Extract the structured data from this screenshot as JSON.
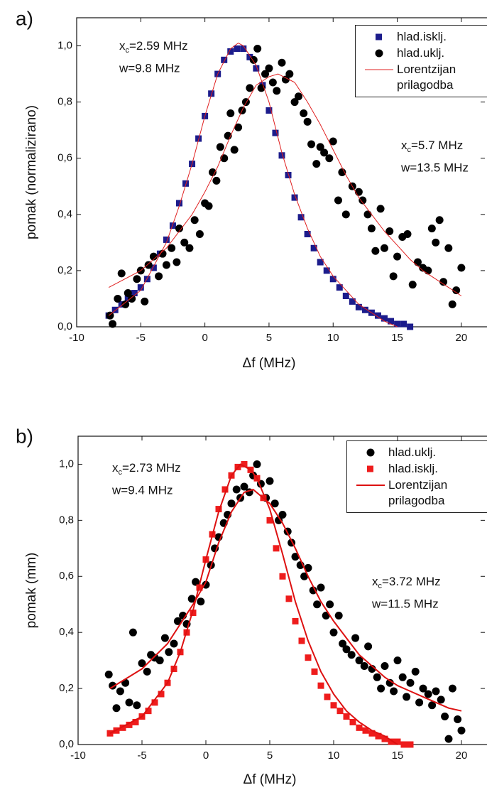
{
  "chart_data": [
    {
      "type": "scatter",
      "label": "a)",
      "x_label": "Δf (MHz)",
      "y_label": "pomak (normalizirano)",
      "xlim": [
        -10,
        22
      ],
      "ylim": [
        0,
        1.1
      ],
      "xticks": [
        -10,
        -5,
        0,
        5,
        10,
        15,
        20
      ],
      "yticks": [
        {
          "value": 0,
          "label": "0,0"
        },
        {
          "value": 0.2,
          "label": "0,2"
        },
        {
          "value": 0.4,
          "label": "0,4"
        },
        {
          "value": 0.6,
          "label": "0,6"
        },
        {
          "value": 0.8,
          "label": "0,8"
        },
        {
          "value": 1.0,
          "label": "1,0"
        }
      ],
      "legend": "top-right",
      "annotations": [
        {
          "lines": [
            [
              "x",
              "c",
              "=2.59 MHz"
            ],
            "w=9.8 MHz"
          ]
        },
        {
          "lines": [
            [
              "x",
              "c",
              "=5.7 MHz"
            ],
            "w=13.5 MHz"
          ]
        }
      ],
      "series": [
        {
          "name": "hlad.isklj.",
          "marker": "square",
          "color": "#1c1c8c",
          "x": [
            -7.5,
            -7,
            -6.5,
            -6,
            -5.5,
            -5,
            -4.5,
            -4,
            -3.5,
            -3,
            -2.5,
            -2,
            -1.5,
            -1,
            -0.5,
            0,
            0.5,
            1,
            1.5,
            2,
            2.5,
            3,
            3.5,
            4,
            4.5,
            5,
            5.5,
            6,
            6.5,
            7,
            7.5,
            8,
            8.5,
            9,
            9.5,
            10,
            10.5,
            11,
            11.5,
            12,
            12.5,
            13,
            13.5,
            14,
            14.5,
            15,
            15.5,
            16
          ],
          "values": [
            0.04,
            0.06,
            0.08,
            0.1,
            0.12,
            0.14,
            0.17,
            0.21,
            0.26,
            0.31,
            0.36,
            0.44,
            0.51,
            0.58,
            0.67,
            0.75,
            0.83,
            0.9,
            0.95,
            0.98,
            0.99,
            0.99,
            0.96,
            0.92,
            0.86,
            0.77,
            0.69,
            0.61,
            0.54,
            0.46,
            0.39,
            0.33,
            0.28,
            0.23,
            0.2,
            0.17,
            0.14,
            0.11,
            0.09,
            0.07,
            0.06,
            0.05,
            0.04,
            0.03,
            0.02,
            0.01,
            0.01,
            0.0
          ]
        },
        {
          "name": "hlad.uklj.",
          "marker": "circle",
          "color": "#000000",
          "x": [
            -7.4,
            -7.2,
            -6.8,
            -6.5,
            -6.2,
            -6,
            -5.7,
            -5.3,
            -5,
            -4.7,
            -4.4,
            -4,
            -3.6,
            -3.3,
            -3,
            -2.6,
            -2.2,
            -2,
            -1.6,
            -1.2,
            -0.8,
            -0.4,
            0,
            0.3,
            0.6,
            0.9,
            1.2,
            1.5,
            1.8,
            2,
            2.3,
            2.6,
            2.9,
            3.2,
            3.5,
            3.8,
            4.1,
            4.4,
            4.7,
            5,
            5.3,
            5.6,
            6,
            6.3,
            6.6,
            7,
            7.3,
            7.7,
            8,
            8.3,
            8.7,
            9,
            9.3,
            9.7,
            10,
            10.4,
            10.7,
            11,
            11.5,
            12,
            12.3,
            12.7,
            13,
            13.3,
            13.7,
            14,
            14.4,
            14.7,
            15,
            15.4,
            15.8,
            16.2,
            16.6,
            17,
            17.4,
            17.7,
            18,
            18.3,
            18.6,
            19,
            19.3,
            19.6,
            20
          ],
          "values": [
            0.04,
            0.01,
            0.1,
            0.19,
            0.08,
            0.12,
            0.1,
            0.17,
            0.2,
            0.09,
            0.22,
            0.25,
            0.18,
            0.26,
            0.22,
            0.28,
            0.23,
            0.35,
            0.3,
            0.28,
            0.38,
            0.33,
            0.44,
            0.43,
            0.55,
            0.52,
            0.64,
            0.6,
            0.68,
            0.76,
            0.63,
            0.71,
            0.77,
            0.8,
            0.85,
            0.95,
            0.99,
            0.85,
            0.9,
            0.92,
            0.87,
            0.84,
            0.94,
            0.88,
            0.9,
            0.8,
            0.82,
            0.76,
            0.73,
            0.65,
            0.58,
            0.64,
            0.62,
            0.6,
            0.66,
            0.45,
            0.55,
            0.4,
            0.5,
            0.48,
            0.45,
            0.4,
            0.35,
            0.27,
            0.42,
            0.28,
            0.34,
            0.18,
            0.25,
            0.32,
            0.33,
            0.15,
            0.23,
            0.21,
            0.2,
            0.35,
            0.3,
            0.38,
            0.16,
            0.28,
            0.08,
            0.13,
            0.21
          ]
        },
        {
          "name": "Lorentzijan prilagodba",
          "marker": "line",
          "color": "#e02020",
          "width": 1,
          "curves": [
            {
              "x": [
                -7.5,
                -5,
                -3,
                -2,
                -1,
                0,
                1,
                2,
                2.6,
                3,
                4,
                5,
                6,
                7,
                8,
                9,
                10,
                11,
                12,
                13,
                14,
                15
              ],
              "values": [
                0.04,
                0.13,
                0.3,
                0.43,
                0.58,
                0.75,
                0.9,
                0.99,
                1.01,
                1.0,
                0.93,
                0.8,
                0.62,
                0.47,
                0.35,
                0.25,
                0.18,
                0.13,
                0.08,
                0.05,
                0.02,
                0.0
              ]
            },
            {
              "x": [
                -7.5,
                -5,
                -3,
                -1,
                0,
                1,
                2,
                3,
                4,
                5,
                5.7,
                7,
                8,
                9,
                10,
                11,
                12,
                13,
                14,
                15,
                16,
                17,
                18,
                19,
                20
              ],
              "values": [
                0.14,
                0.2,
                0.28,
                0.4,
                0.48,
                0.57,
                0.68,
                0.78,
                0.86,
                0.89,
                0.9,
                0.87,
                0.8,
                0.72,
                0.63,
                0.54,
                0.46,
                0.4,
                0.34,
                0.29,
                0.24,
                0.2,
                0.17,
                0.14,
                0.11
              ]
            }
          ]
        }
      ]
    },
    {
      "type": "scatter",
      "label": "b)",
      "x_label": "Δf (MHz)",
      "y_label": "pomak (mm)",
      "xlim": [
        -10,
        22
      ],
      "ylim": [
        0,
        1.1
      ],
      "xticks": [
        -10,
        -5,
        0,
        5,
        10,
        15,
        20
      ],
      "yticks": [
        {
          "value": 0,
          "label": "0,0"
        },
        {
          "value": 0.2,
          "label": "0,2"
        },
        {
          "value": 0.4,
          "label": "0,4"
        },
        {
          "value": 0.6,
          "label": "0,6"
        },
        {
          "value": 0.8,
          "label": "0,8"
        },
        {
          "value": 1.0,
          "label": "1,0"
        }
      ],
      "legend": "top-right",
      "annotations": [
        {
          "lines": [
            [
              "x",
              "c",
              "=2.73 MHz"
            ],
            "w=9.4 MHz"
          ]
        },
        {
          "lines": [
            [
              "x",
              "c",
              "=3.72 MHz"
            ],
            "w=11.5 MHz"
          ]
        }
      ],
      "series": [
        {
          "name": "hlad.uklj.",
          "marker": "circle",
          "color": "#000000",
          "x": [
            -7.6,
            -7.3,
            -7,
            -6.7,
            -6.3,
            -6,
            -5.7,
            -5.4,
            -5,
            -4.6,
            -4.3,
            -4,
            -3.6,
            -3.2,
            -2.9,
            -2.5,
            -2.2,
            -1.8,
            -1.5,
            -1.1,
            -0.8,
            -0.4,
            0,
            0.4,
            0.7,
            1,
            1.4,
            1.7,
            2,
            2.4,
            2.7,
            3,
            3.4,
            3.7,
            4,
            4.3,
            4.7,
            5,
            5.4,
            5.7,
            6,
            6.4,
            6.7,
            7,
            7.4,
            7.7,
            8,
            8.4,
            8.7,
            9,
            9.4,
            9.7,
            10,
            10.4,
            10.7,
            11,
            11.4,
            11.7,
            12,
            12.4,
            12.7,
            13,
            13.4,
            13.7,
            14,
            14.4,
            14.7,
            15,
            15.4,
            15.7,
            16,
            16.4,
            16.7,
            17,
            17.4,
            17.7,
            18,
            18.4,
            18.7,
            19,
            19.3,
            19.7,
            20
          ],
          "values": [
            0.25,
            0.21,
            0.13,
            0.19,
            0.22,
            0.15,
            0.4,
            0.14,
            0.29,
            0.26,
            0.32,
            0.31,
            0.3,
            0.38,
            0.33,
            0.36,
            0.44,
            0.46,
            0.43,
            0.52,
            0.58,
            0.51,
            0.57,
            0.64,
            0.7,
            0.74,
            0.79,
            0.82,
            0.86,
            0.91,
            0.88,
            0.92,
            0.9,
            0.96,
            1.0,
            0.93,
            0.88,
            0.94,
            0.86,
            0.8,
            0.82,
            0.76,
            0.72,
            0.67,
            0.64,
            0.6,
            0.63,
            0.55,
            0.5,
            0.56,
            0.46,
            0.5,
            0.4,
            0.46,
            0.36,
            0.34,
            0.32,
            0.38,
            0.3,
            0.28,
            0.35,
            0.27,
            0.24,
            0.2,
            0.28,
            0.22,
            0.19,
            0.3,
            0.24,
            0.17,
            0.22,
            0.26,
            0.15,
            0.2,
            0.18,
            0.14,
            0.19,
            0.16,
            0.1,
            0.02,
            0.2,
            0.09,
            0.05
          ]
        },
        {
          "name": "hlad.isklj.",
          "marker": "square",
          "color": "#ee1c1c",
          "x": [
            -7.5,
            -7,
            -6.5,
            -6,
            -5.5,
            -5,
            -4.5,
            -4,
            -3.5,
            -3,
            -2.5,
            -2,
            -1.5,
            -1,
            -0.5,
            0,
            0.5,
            1,
            1.5,
            2,
            2.5,
            3,
            3.5,
            4,
            4.5,
            5,
            5.5,
            6,
            6.5,
            7,
            7.5,
            8,
            8.5,
            9,
            9.5,
            10,
            10.5,
            11,
            11.5,
            12,
            12.5,
            13,
            13.5,
            14,
            14.5,
            15,
            15.5,
            16
          ],
          "values": [
            0.04,
            0.05,
            0.06,
            0.07,
            0.08,
            0.1,
            0.12,
            0.15,
            0.18,
            0.22,
            0.27,
            0.33,
            0.4,
            0.47,
            0.56,
            0.66,
            0.75,
            0.84,
            0.91,
            0.96,
            0.99,
            1.0,
            0.98,
            0.95,
            0.88,
            0.8,
            0.7,
            0.6,
            0.52,
            0.44,
            0.37,
            0.31,
            0.26,
            0.21,
            0.17,
            0.14,
            0.12,
            0.1,
            0.08,
            0.06,
            0.05,
            0.04,
            0.03,
            0.02,
            0.01,
            0.01,
            0.0,
            0.0
          ]
        },
        {
          "name": "Lorentzijan prilagodba",
          "marker": "line",
          "color": "#dd1111",
          "width": 2,
          "curves": [
            {
              "x": [
                -7.5,
                -5,
                -3,
                -2,
                -1,
                0,
                1,
                2,
                2.7,
                3.5,
                4,
                5,
                6,
                7,
                8,
                9,
                10,
                11,
                12,
                13,
                14,
                15
              ],
              "values": [
                0.04,
                0.1,
                0.22,
                0.33,
                0.48,
                0.66,
                0.83,
                0.96,
                1.0,
                0.98,
                0.95,
                0.84,
                0.68,
                0.51,
                0.37,
                0.26,
                0.18,
                0.12,
                0.08,
                0.05,
                0.03,
                0.0
              ]
            },
            {
              "x": [
                -7.5,
                -5,
                -3,
                -1,
                0,
                1,
                2,
                3,
                3.7,
                5,
                6,
                7,
                8,
                9,
                10,
                11,
                12,
                13,
                14,
                15,
                16,
                17,
                18,
                19,
                20
              ],
              "values": [
                0.2,
                0.27,
                0.36,
                0.5,
                0.58,
                0.72,
                0.83,
                0.9,
                0.91,
                0.86,
                0.79,
                0.7,
                0.6,
                0.51,
                0.44,
                0.38,
                0.32,
                0.28,
                0.24,
                0.21,
                0.19,
                0.17,
                0.15,
                0.13,
                0.12
              ]
            }
          ]
        }
      ]
    }
  ]
}
